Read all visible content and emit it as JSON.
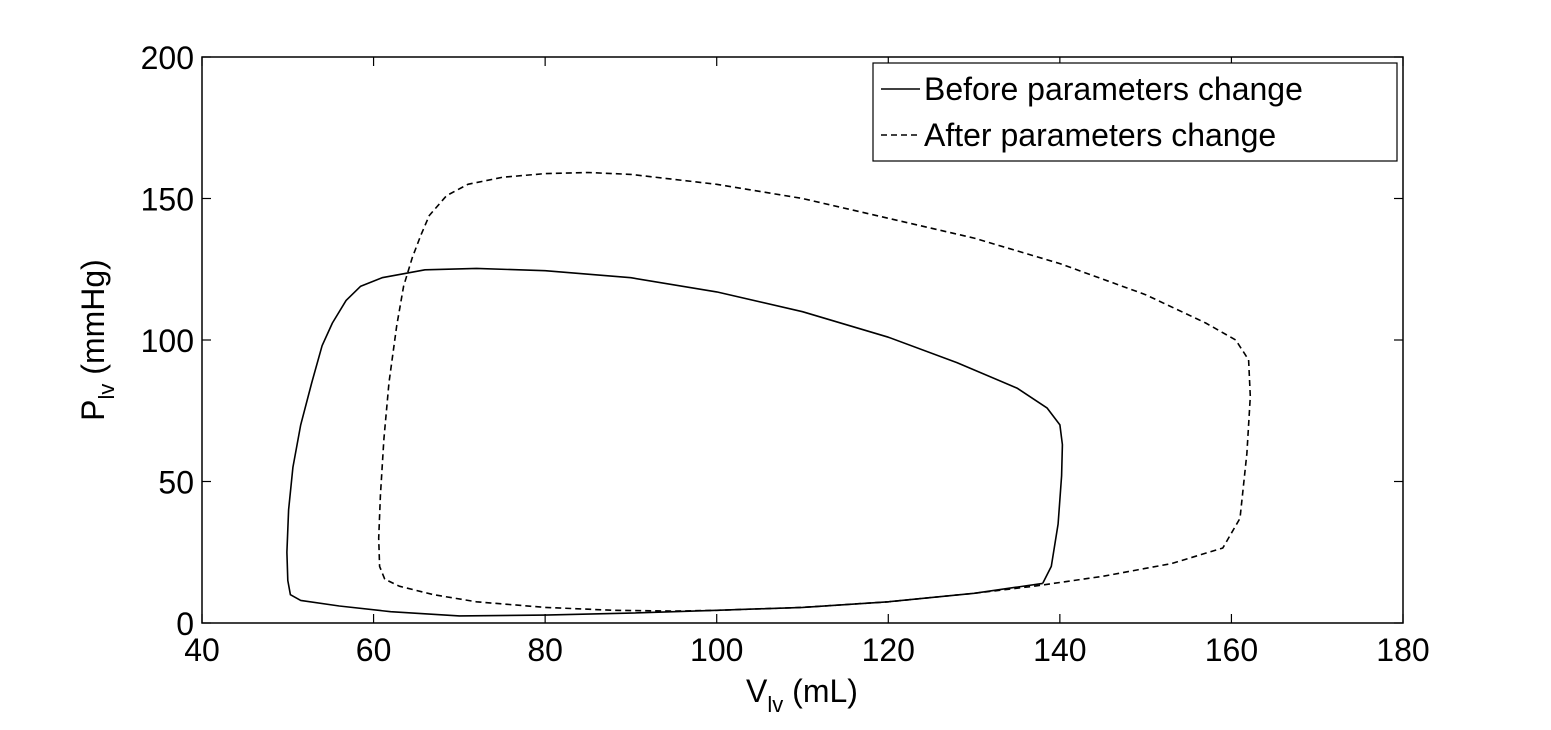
{
  "chart_data": {
    "type": "line",
    "xlabel": {
      "main": "V",
      "sub": "lv",
      "unit": " (mL)"
    },
    "ylabel": {
      "main": "P",
      "sub": "lv",
      "unit": " (mmHg)"
    },
    "xlim": [
      40,
      180
    ],
    "ylim": [
      0,
      200
    ],
    "xticks": [
      40,
      60,
      80,
      100,
      120,
      140,
      160,
      180
    ],
    "yticks": [
      0,
      50,
      100,
      150,
      200
    ],
    "grid": false,
    "legend_position": "top-right",
    "series": [
      {
        "name": "Before parameters change",
        "style": "solid",
        "color": "#000000",
        "points": [
          [
            138,
            14
          ],
          [
            139,
            20
          ],
          [
            139.8,
            35
          ],
          [
            140.2,
            52
          ],
          [
            140.3,
            63
          ],
          [
            140,
            70
          ],
          [
            138.5,
            76
          ],
          [
            135,
            83
          ],
          [
            128,
            92
          ],
          [
            120,
            101
          ],
          [
            110,
            110
          ],
          [
            100,
            117
          ],
          [
            90,
            122
          ],
          [
            80,
            124.5
          ],
          [
            72,
            125.3
          ],
          [
            66,
            124.8
          ],
          [
            61,
            122
          ],
          [
            58.5,
            119
          ],
          [
            56.8,
            114
          ],
          [
            55.2,
            106
          ],
          [
            54,
            98
          ],
          [
            52.8,
            85
          ],
          [
            51.5,
            70
          ],
          [
            50.6,
            55
          ],
          [
            50.1,
            40
          ],
          [
            49.9,
            25
          ],
          [
            50,
            15
          ],
          [
            50.3,
            10
          ],
          [
            51.5,
            8
          ],
          [
            56,
            6
          ],
          [
            62,
            4
          ],
          [
            70,
            2.5
          ],
          [
            80,
            2.8
          ],
          [
            90,
            3.5
          ],
          [
            100,
            4.5
          ],
          [
            110,
            5.5
          ],
          [
            120,
            7.5
          ],
          [
            130,
            10.5
          ],
          [
            138,
            14
          ]
        ]
      },
      {
        "name": "After parameters change",
        "style": "dashed",
        "color": "#000000",
        "points": [
          [
            137,
            13
          ],
          [
            145,
            16.5
          ],
          [
            153,
            21
          ],
          [
            159,
            26.5
          ],
          [
            161,
            37
          ],
          [
            161.8,
            60
          ],
          [
            162.2,
            80
          ],
          [
            162,
            93
          ],
          [
            160.5,
            100
          ],
          [
            157,
            106
          ],
          [
            150,
            116
          ],
          [
            140,
            127
          ],
          [
            130,
            136
          ],
          [
            120,
            143
          ],
          [
            110,
            150
          ],
          [
            100,
            155
          ],
          [
            90,
            158.5
          ],
          [
            85,
            159.2
          ],
          [
            80,
            158.8
          ],
          [
            75,
            157.5
          ],
          [
            71,
            155
          ],
          [
            68.5,
            151
          ],
          [
            66.5,
            144
          ],
          [
            65.5,
            137
          ],
          [
            64.5,
            129
          ],
          [
            63.5,
            119
          ],
          [
            62.7,
            105
          ],
          [
            61.8,
            85
          ],
          [
            61.2,
            65
          ],
          [
            60.8,
            45
          ],
          [
            60.6,
            30
          ],
          [
            60.7,
            20
          ],
          [
            61.3,
            15.5
          ],
          [
            63,
            13
          ],
          [
            67,
            10
          ],
          [
            72,
            7.5
          ],
          [
            80,
            5.5
          ],
          [
            88,
            4.5
          ],
          [
            95,
            4.2
          ],
          [
            100,
            4.5
          ],
          [
            110,
            5.5
          ],
          [
            120,
            7.5
          ],
          [
            130,
            10.5
          ],
          [
            137,
            13
          ]
        ]
      }
    ]
  }
}
